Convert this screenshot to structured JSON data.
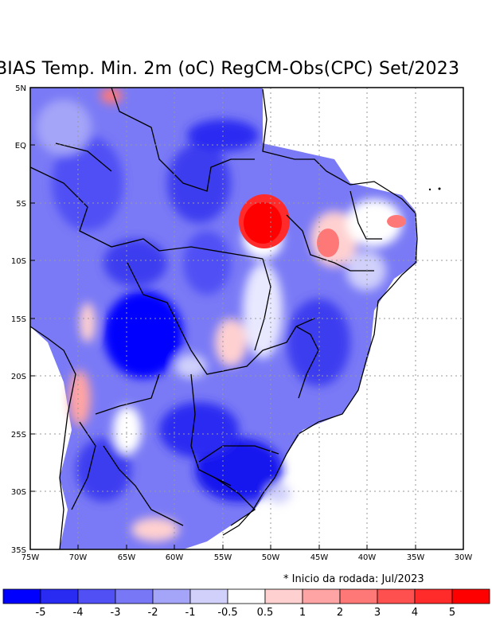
{
  "title": "BIAS Temp. Min. 2m (oC) RegCM-Obs(CPC) Set/2023",
  "note": "* Inicio da rodada: Jul/2023",
  "axes": {
    "lat_labels": [
      "5N",
      "EQ",
      "5S",
      "10S",
      "15S",
      "20S",
      "25S",
      "30S",
      "35S"
    ],
    "lon_labels": [
      "75W",
      "70W",
      "65W",
      "60W",
      "55W",
      "50W",
      "45W",
      "40W",
      "35W",
      "30W"
    ]
  },
  "colorbar": {
    "labels": [
      "-5",
      "-4",
      "-3",
      "-2",
      "-1",
      "-0.5",
      "0.5",
      "1",
      "2",
      "3",
      "4",
      "5"
    ],
    "colors": [
      "#0000ff",
      "#2a2bf2",
      "#5050f5",
      "#7878f6",
      "#a4a4f8",
      "#d0d0fb",
      "#ffffff",
      "#ffd0d0",
      "#ffa4a4",
      "#ff7878",
      "#ff5050",
      "#ff2b2b",
      "#ff0000"
    ]
  },
  "map": {
    "region": "Brazil / South America",
    "field": "temperature bias"
  }
}
